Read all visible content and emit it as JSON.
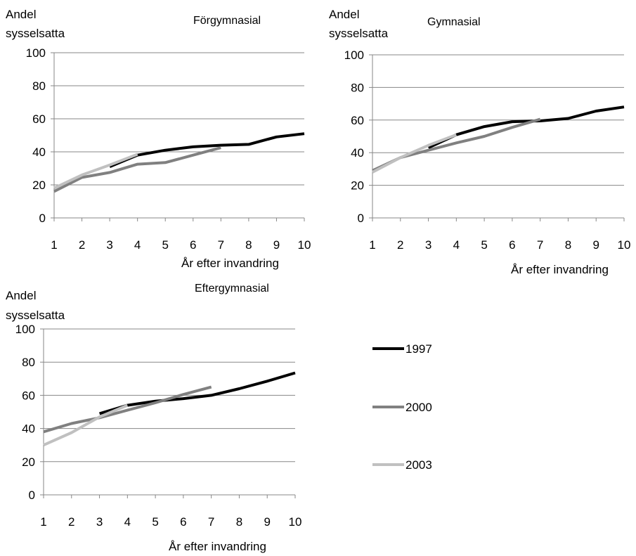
{
  "colors": {
    "1997": "#000000",
    "2000": "#808080",
    "2003": "#c0c0c0",
    "grid": "#878787",
    "axis": "#878787"
  },
  "legend": [
    {
      "name": "1997",
      "color": "#000000"
    },
    {
      "name": "2000",
      "color": "#808080"
    },
    {
      "name": "2003",
      "color": "#c0c0c0"
    }
  ],
  "chart_data": [
    {
      "type": "line",
      "title": "Förgymnasial",
      "ylabel": [
        "Andel",
        "sysselsatta"
      ],
      "xlabel": "År efter invandring",
      "categories": [
        "1",
        "2",
        "3",
        "4",
        "5",
        "6",
        "7",
        "8",
        "9",
        "10"
      ],
      "ylim": [
        0,
        100
      ],
      "yticks": [
        "0",
        "20",
        "40",
        "60",
        "80",
        "100"
      ],
      "grid": true,
      "series": [
        {
          "name": "1997",
          "x": [
            3,
            4,
            5,
            6,
            7,
            8,
            9,
            10
          ],
          "values": [
            31,
            38,
            41,
            43,
            44,
            44.5,
            49,
            51
          ]
        },
        {
          "name": "2000",
          "x": [
            1,
            2,
            3,
            4,
            5,
            6,
            7
          ],
          "values": [
            16,
            24.5,
            27.5,
            32.5,
            33.5,
            38,
            42.5
          ]
        },
        {
          "name": "2003",
          "x": [
            1,
            2,
            3,
            4
          ],
          "values": [
            18,
            26,
            32,
            38.5
          ]
        }
      ]
    },
    {
      "type": "line",
      "title": "Gymnasial",
      "ylabel": [
        "Andel",
        "sysselsatta"
      ],
      "xlabel": "År efter invandring",
      "categories": [
        "1",
        "2",
        "3",
        "4",
        "5",
        "6",
        "7",
        "8",
        "9",
        "10"
      ],
      "ylim": [
        0,
        100
      ],
      "yticks": [
        "0",
        "20",
        "40",
        "60",
        "80",
        "100"
      ],
      "grid": true,
      "series": [
        {
          "name": "1997",
          "x": [
            3,
            4,
            5,
            6,
            7,
            8,
            9,
            10
          ],
          "values": [
            43,
            51,
            56,
            59,
            59.5,
            61,
            65.5,
            68
          ]
        },
        {
          "name": "2000",
          "x": [
            1,
            2,
            3,
            4,
            5,
            6,
            7
          ],
          "values": [
            29,
            37,
            41.5,
            46,
            50,
            55.5,
            60.5
          ]
        },
        {
          "name": "2003",
          "x": [
            1,
            2,
            3,
            4
          ],
          "values": [
            28,
            37,
            44.5,
            51
          ]
        }
      ]
    },
    {
      "type": "line",
      "title": "Eftergymnasial",
      "ylabel": [
        "Andel",
        "sysselsatta"
      ],
      "xlabel": "År efter invandring",
      "categories": [
        "1",
        "2",
        "3",
        "4",
        "5",
        "6",
        "7",
        "8",
        "9",
        "10"
      ],
      "ylim": [
        0,
        100
      ],
      "yticks": [
        "0",
        "20",
        "40",
        "60",
        "80",
        "100"
      ],
      "grid": true,
      "series": [
        {
          "name": "1997",
          "x": [
            3,
            4,
            5,
            6,
            7,
            8,
            9,
            10
          ],
          "values": [
            49,
            54,
            56.5,
            58,
            60,
            64,
            68.5,
            73.5
          ]
        },
        {
          "name": "2000",
          "x": [
            1,
            2,
            3,
            4,
            5,
            6,
            7
          ],
          "values": [
            38,
            43,
            46.5,
            51,
            55.5,
            60.5,
            65
          ]
        },
        {
          "name": "2003",
          "x": [
            1,
            2,
            3,
            4
          ],
          "values": [
            30,
            37.5,
            47,
            54
          ]
        }
      ]
    }
  ]
}
